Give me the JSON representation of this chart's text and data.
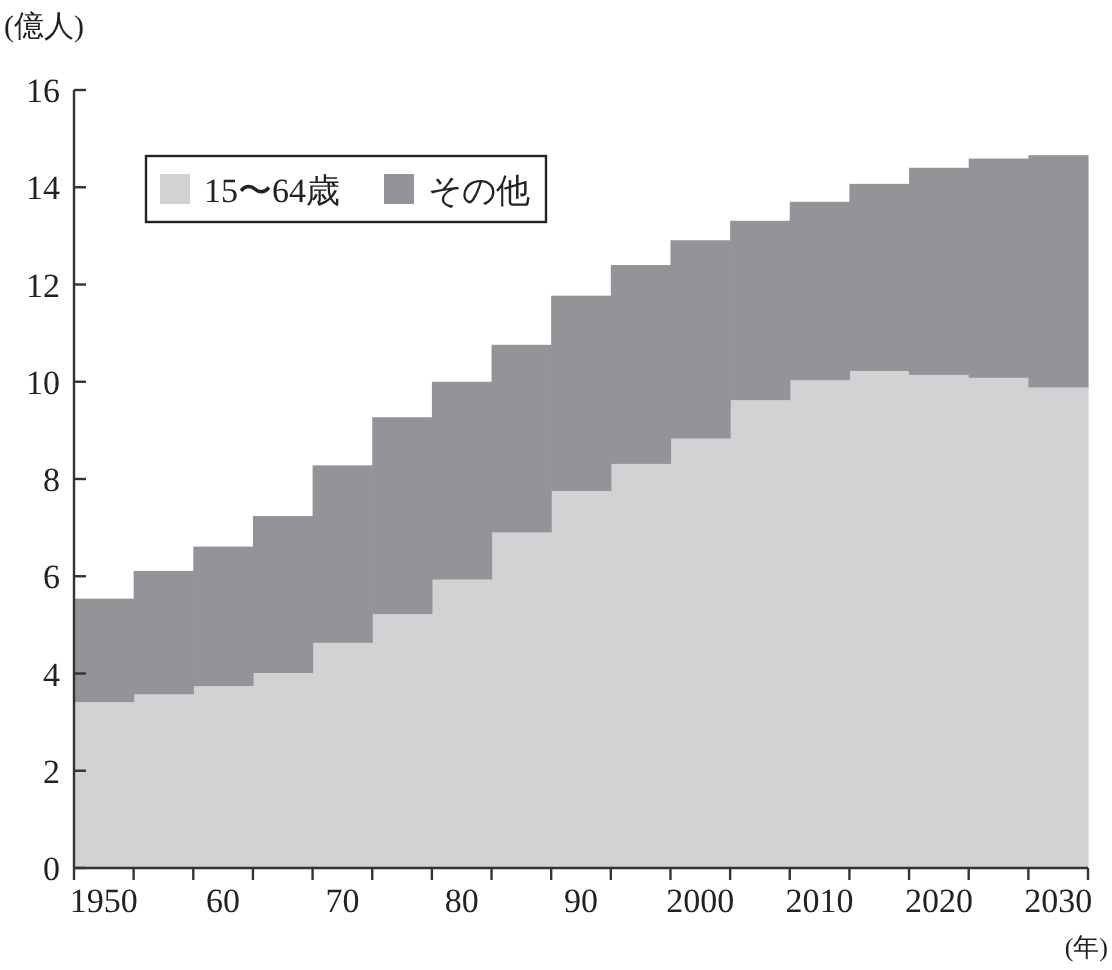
{
  "chart_data": {
    "type": "bar",
    "stacked": true,
    "ylabel": "(億人)",
    "xlabel": "(年)",
    "categories": [
      "1950",
      null,
      "60",
      null,
      "70",
      null,
      "80",
      null,
      "90",
      null,
      "2000",
      null,
      "2010",
      null,
      "2020",
      null,
      "2030"
    ],
    "series": [
      {
        "name": "15〜64歳",
        "color": "#d1d2d4",
        "values": [
          3.41,
          3.57,
          3.74,
          4.01,
          4.63,
          5.22,
          5.93,
          6.9,
          7.75,
          8.31,
          8.83,
          9.62,
          10.03,
          10.22,
          10.14,
          10.08,
          9.88
        ]
      },
      {
        "name": "その他",
        "color": "#939497",
        "values": [
          2.13,
          2.54,
          2.87,
          3.23,
          3.65,
          4.05,
          4.07,
          3.86,
          4.02,
          4.09,
          4.08,
          3.69,
          3.67,
          3.85,
          4.26,
          4.51,
          4.78
        ]
      }
    ],
    "ylim": [
      0,
      16
    ],
    "yticks": [
      0,
      2,
      4,
      6,
      8,
      10,
      12,
      14,
      16
    ],
    "legend": "top left",
    "grid": false
  }
}
